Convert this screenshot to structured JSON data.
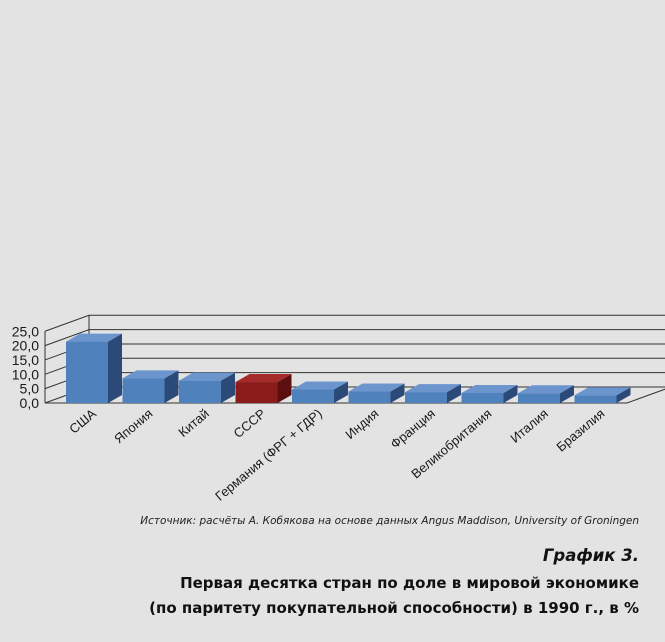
{
  "chart_data": {
    "type": "bar",
    "categories": [
      "США",
      "Япония",
      "Китай",
      "СССР",
      "Германия (ФРГ + ГДР)",
      "Индия",
      "Франция",
      "Великобритания",
      "Италия",
      "Бразилия"
    ],
    "values": [
      21.4,
      8.6,
      7.8,
      7.3,
      4.7,
      4.0,
      3.8,
      3.5,
      3.4,
      2.7
    ],
    "highlight_index": 3,
    "colors": {
      "default": "#4f81bd",
      "highlight": "#8b1c1c"
    },
    "ylim": [
      0,
      25
    ],
    "yticks": [
      "0,0",
      "5,0",
      "10,0",
      "15,0",
      "20,0",
      "25,0"
    ],
    "grid": true,
    "xlabel": "",
    "ylabel": ""
  },
  "source": "Источник: расчёты А. Кобякова на основе данных Angus Maddison, University of Groningen",
  "caption": {
    "number": "График 3.",
    "line1": "Первая десятка стран по доле в мировой экономике",
    "line2": "(по паритету покупательной способности) в 1990 г., в %"
  }
}
